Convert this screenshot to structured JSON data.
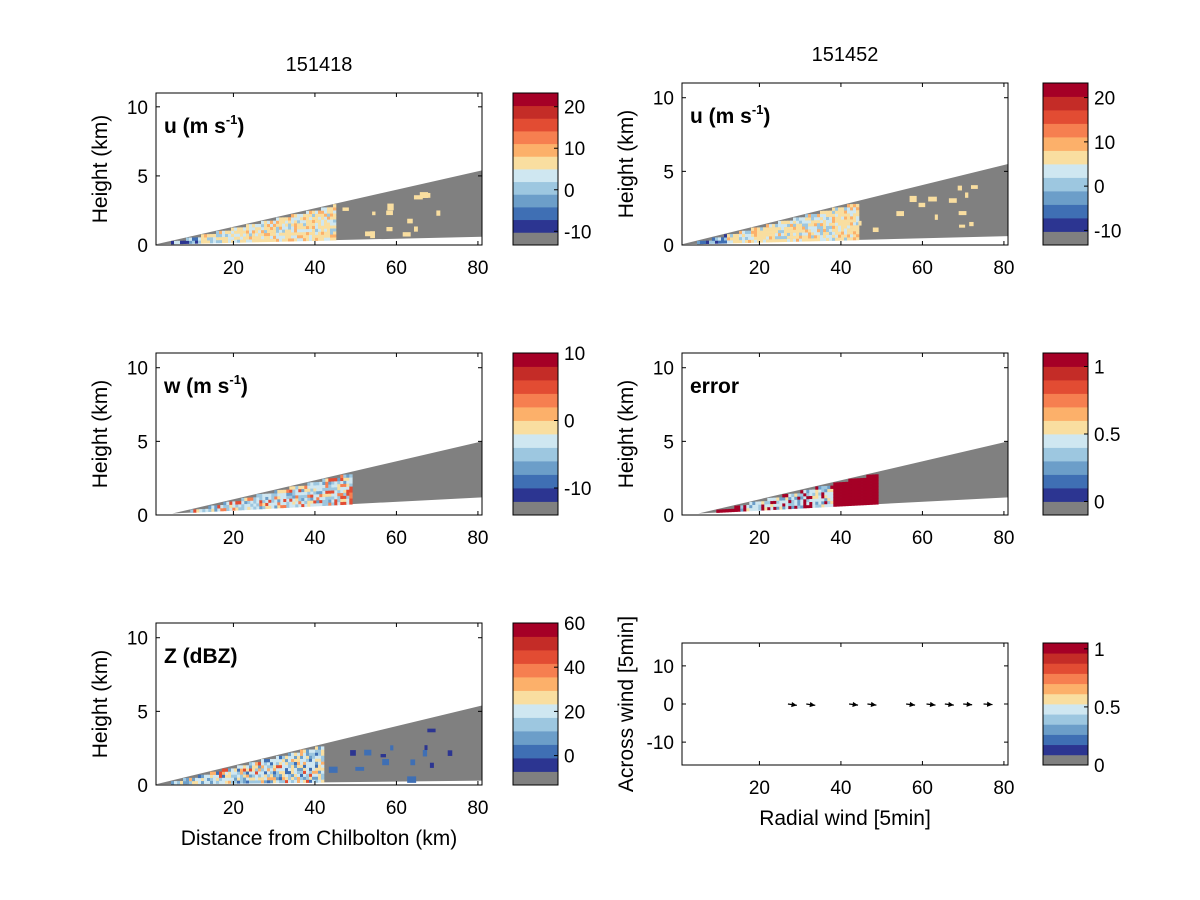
{
  "colormap": [
    "#808080",
    "#2c3591",
    "#3f6fb4",
    "#6c9ec9",
    "#9dc7e0",
    "#cfe7f1",
    "#f9dea0",
    "#fcb06a",
    "#f67f50",
    "#e24c33",
    "#c42c27",
    "#a50026"
  ],
  "chart_data": [
    {
      "id": "u1",
      "type": "heatmap",
      "title": "151418",
      "label": "u (m s",
      "label_sup": "-1",
      "label_tail": ")",
      "xlabel": "",
      "ylabel": "Height (km)",
      "xlim": [
        1,
        81
      ],
      "ylim": [
        0,
        11
      ],
      "xticks": [
        "20",
        "40",
        "60",
        "80"
      ],
      "yticks": [
        "0",
        "5",
        "10"
      ],
      "beam": {
        "x_start": 1,
        "x_end": 81,
        "top_end": 5.4,
        "bottom_end": 0.6
      },
      "fill": {
        "x_end": 45,
        "dominant": "10-15"
      },
      "colorbar": {
        "ticks": [
          "-10",
          "0",
          "10",
          "20"
        ],
        "range": [
          -13.3,
          23.3
        ]
      }
    },
    {
      "id": "u2",
      "type": "heatmap",
      "title": "151452",
      "label": "u (m s",
      "label_sup": "-1",
      "label_tail": ")",
      "xlabel": "",
      "ylabel": "Height (km)",
      "xlim": [
        1,
        81
      ],
      "ylim": [
        0,
        11
      ],
      "xticks": [
        "20",
        "40",
        "60",
        "80"
      ],
      "yticks": [
        "0",
        "5",
        "10"
      ],
      "beam": {
        "x_start": 1,
        "x_end": 81,
        "top_end": 5.5,
        "bottom_end": 0.6
      },
      "fill": {
        "x_end": 44,
        "dominant": "10-15"
      },
      "colorbar": {
        "ticks": [
          "-10",
          "0",
          "10",
          "20"
        ],
        "range": [
          -13.3,
          23.3
        ]
      }
    },
    {
      "id": "w",
      "type": "heatmap",
      "title": "",
      "label": "w (m s",
      "label_sup": "-1",
      "label_tail": ")",
      "xlabel": "",
      "ylabel": "Height (km)",
      "xlim": [
        1,
        81
      ],
      "ylim": [
        0,
        11
      ],
      "xticks": [
        "20",
        "40",
        "60",
        "80"
      ],
      "yticks": [
        "0",
        "5",
        "10"
      ],
      "beam": {
        "x_start": 5,
        "x_end": 81,
        "top_end": 5.0,
        "bottom_end": 1.2
      },
      "fill": {
        "x_end": 49,
        "dominant": "mixed"
      },
      "colorbar": {
        "ticks": [
          "-10",
          "0",
          "10"
        ],
        "range": [
          -14,
          10
        ]
      }
    },
    {
      "id": "err",
      "type": "heatmap",
      "title": "",
      "label": "error",
      "label_sup": "",
      "label_tail": "",
      "xlabel": "",
      "ylabel": "Height (km)",
      "xlim": [
        1,
        81
      ],
      "ylim": [
        0,
        11
      ],
      "xticks": [
        "20",
        "40",
        "60",
        "80"
      ],
      "yticks": [
        "0",
        "5",
        "10"
      ],
      "beam": {
        "x_start": 5,
        "x_end": 81,
        "top_end": 5.0,
        "bottom_end": 1.2
      },
      "fill": {
        "x_end": 49,
        "dominant": ">1"
      },
      "colorbar": {
        "ticks": [
          "0",
          "0.5",
          "1"
        ],
        "range": [
          -0.1,
          1.1
        ]
      }
    },
    {
      "id": "z",
      "type": "heatmap",
      "title": "",
      "label": "Z (dBZ)",
      "label_sup": "",
      "label_tail": "",
      "xlabel": "Distance from Chilbolton (km)",
      "ylabel": "Height (km)",
      "xlim": [
        1,
        81
      ],
      "ylim": [
        0,
        11
      ],
      "xticks": [
        "20",
        "40",
        "60",
        "80"
      ],
      "yticks": [
        "0",
        "5",
        "10"
      ],
      "beam": {
        "x_start": 1,
        "x_end": 81,
        "top_end": 5.4,
        "bottom_end": 0.3
      },
      "fill": {
        "x_end": 42,
        "dominant": "10-30"
      },
      "colorbar": {
        "ticks": [
          "0",
          "20",
          "40",
          "60"
        ],
        "range": [
          -13.3,
          60
        ]
      }
    },
    {
      "id": "vec",
      "type": "scatter",
      "title": "",
      "label": "",
      "xlabel": "Radial wind [5min]",
      "ylabel": "Across wind [5min]",
      "xlim": [
        1,
        81
      ],
      "ylim": [
        -16,
        16
      ],
      "xticks": [
        "20",
        "40",
        "60",
        "80"
      ],
      "yticks": [
        "-10",
        "0",
        "10"
      ],
      "points": [
        {
          "x": 27,
          "y": 0,
          "u": 2.2,
          "v": -0.35
        },
        {
          "x": 31.5,
          "y": 0,
          "u": 2.2,
          "v": -0.35
        },
        {
          "x": 42,
          "y": 0,
          "u": 2.2,
          "v": -0.3
        },
        {
          "x": 46.5,
          "y": 0,
          "u": 2.2,
          "v": -0.3
        },
        {
          "x": 56,
          "y": 0,
          "u": 2.2,
          "v": -0.3
        },
        {
          "x": 61,
          "y": 0,
          "u": 2.2,
          "v": -0.3
        },
        {
          "x": 65.5,
          "y": 0,
          "u": 2.2,
          "v": -0.3
        },
        {
          "x": 70,
          "y": 0,
          "u": 2.2,
          "v": -0.2
        },
        {
          "x": 75,
          "y": 0,
          "u": 2.2,
          "v": -0.15
        }
      ],
      "colorbar": {
        "ticks": [
          "0",
          "0.5",
          "1"
        ],
        "range": [
          0,
          1.05
        ]
      }
    }
  ]
}
